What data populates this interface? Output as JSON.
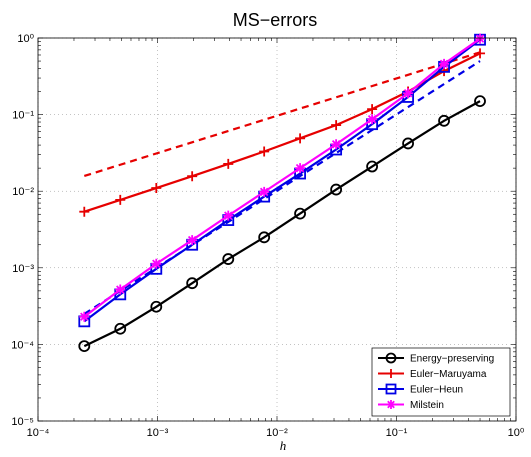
{
  "chart_data": {
    "type": "line",
    "title": "MS−errors",
    "xlabel": "h",
    "ylabel": "",
    "xscale": "log",
    "yscale": "log",
    "xlim": [
      0.0001,
      1
    ],
    "ylim": [
      1e-05,
      1
    ],
    "x_ticks": [
      "10⁻⁴",
      "10⁻³",
      "10⁻²",
      "10⁻¹",
      "10⁰"
    ],
    "y_ticks": [
      "10⁻⁵",
      "10⁻⁴",
      "10⁻³",
      "10⁻²",
      "10⁻¹",
      "10⁰"
    ],
    "grid": true,
    "legend_position": "bottom-right",
    "x": [
      0.000244,
      0.000488,
      0.000977,
      0.00195,
      0.00391,
      0.00781,
      0.0156,
      0.03125,
      0.0625,
      0.125,
      0.25,
      0.5
    ],
    "series": [
      {
        "name": "Energy−preserving",
        "color": "#000000",
        "marker": "circle",
        "values": [
          9.5e-05,
          0.00016,
          0.00031,
          0.00063,
          0.0013,
          0.0025,
          0.0051,
          0.0105,
          0.021,
          0.042,
          0.083,
          0.15
        ]
      },
      {
        "name": "Euler−Maruyama",
        "color": "#e60000",
        "marker": "plus",
        "values": [
          0.0054,
          0.0077,
          0.011,
          0.0157,
          0.0227,
          0.033,
          0.049,
          0.073,
          0.118,
          0.2,
          0.37,
          0.63
        ]
      },
      {
        "name": "Euler−Heun",
        "color": "#0000e6",
        "marker": "square",
        "values": [
          0.0002,
          0.00045,
          0.00097,
          0.002,
          0.0042,
          0.0085,
          0.017,
          0.035,
          0.075,
          0.17,
          0.42,
          0.95
        ]
      },
      {
        "name": "Milstein",
        "color": "#ff00ff",
        "marker": "asterisk",
        "values": [
          0.00023,
          0.00052,
          0.00113,
          0.0023,
          0.0048,
          0.0098,
          0.02,
          0.041,
          0.087,
          0.19,
          0.46,
          0.98
        ]
      }
    ],
    "reference_lines": [
      {
        "color": "#e60000",
        "style": "dashed",
        "x": [
          0.000244,
          0.5
        ],
        "y": [
          0.0158,
          0.65
        ]
      },
      {
        "color": "#0000e6",
        "style": "dashed",
        "x": [
          0.000244,
          0.5
        ],
        "y": [
          0.00025,
          0.5
        ]
      }
    ]
  }
}
